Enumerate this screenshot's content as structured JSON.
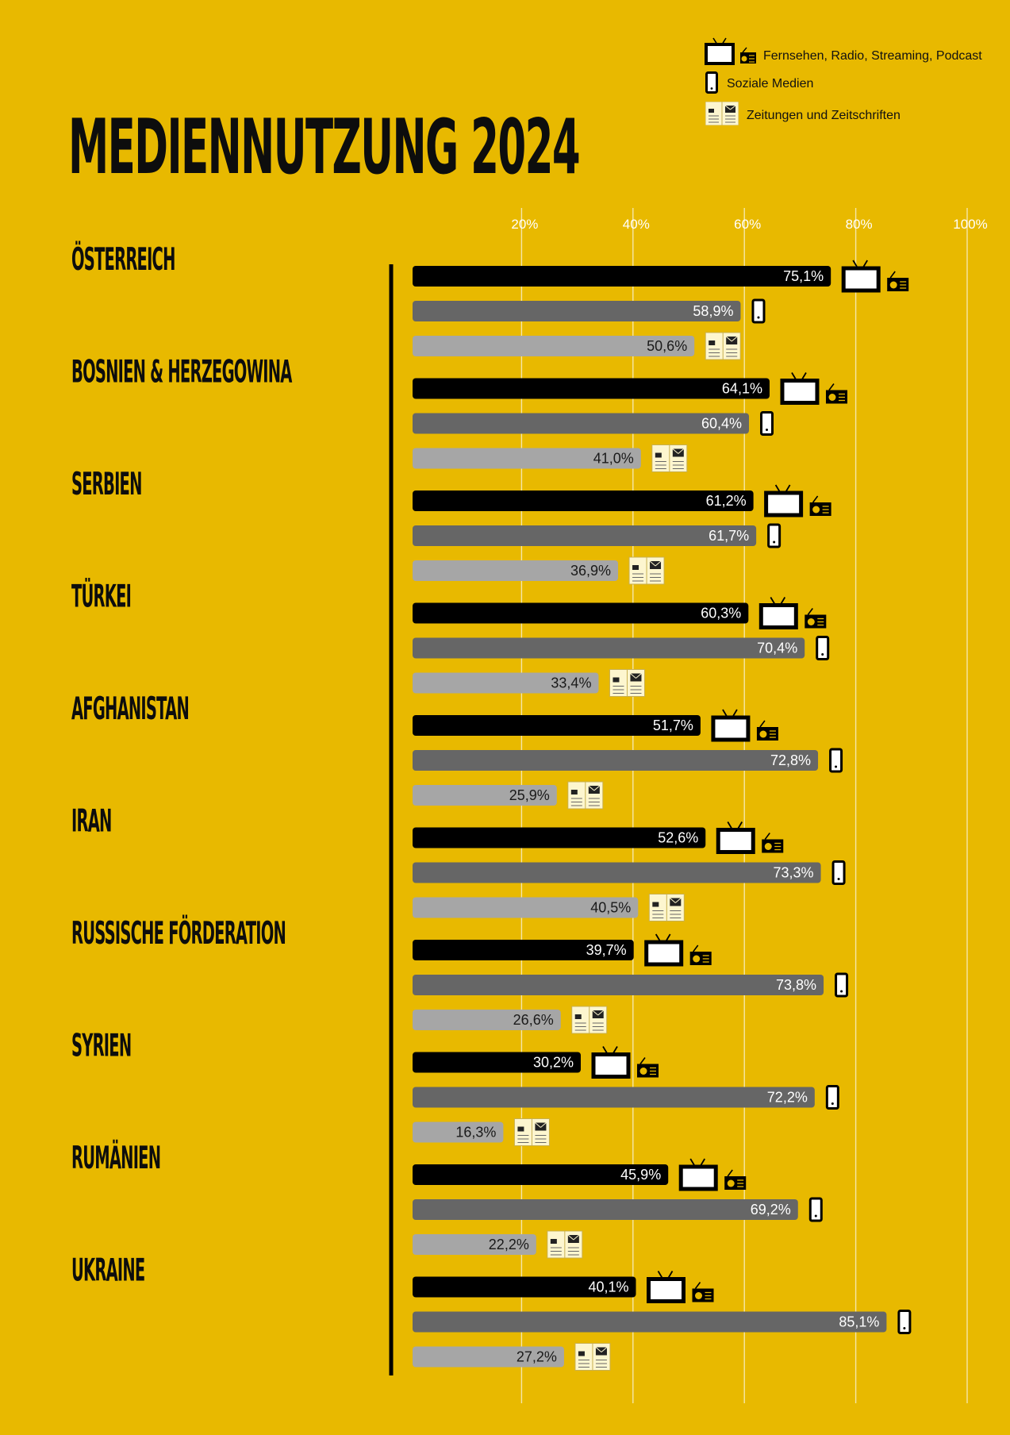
{
  "title": "MEDIENNUTZUNG 2024",
  "legend": {
    "tv": "Fernsehen, Radio, Streaming, Podcast",
    "social": "Soziale Medien",
    "print": "Zeitungen und Zeitschriften"
  },
  "colors": {
    "background": "#e8b900",
    "tv": "#000000",
    "social": "#666666",
    "print": "#a6a6a6",
    "gridline": "#f5e6a8",
    "text": "#0d0d0d"
  },
  "chart_data": {
    "type": "bar",
    "orientation": "horizontal",
    "title": "MEDIENNUTZUNG 2024",
    "xlim": [
      0,
      100
    ],
    "xticks": [
      20,
      40,
      60,
      80,
      100
    ],
    "xtick_labels": [
      "20%",
      "40%",
      "60%",
      "80%",
      "100%"
    ],
    "grid": true,
    "legend_position": "top-right",
    "categories": [
      "ÖSTERREICH",
      "BOSNIEN & HERZEGOWINA",
      "SERBIEN",
      "TÜRKEI",
      "AFGHANISTAN",
      "IRAN",
      "RUSSISCHE FÖRDERATION",
      "SYRIEN",
      "RUMÄNIEN",
      "UKRAINE"
    ],
    "series": [
      {
        "name": "Fernsehen, Radio, Streaming, Podcast",
        "icon": "tv-radio-icon",
        "values": [
          75.1,
          64.1,
          61.2,
          60.3,
          51.7,
          52.6,
          39.7,
          30.2,
          45.9,
          40.1
        ],
        "labels": [
          "75,1%",
          "64,1%",
          "61,2%",
          "60,3%",
          "51,7%",
          "52,6%",
          "39,7%",
          "30,2%",
          "45,9%",
          "40,1%"
        ]
      },
      {
        "name": "Soziale Medien",
        "icon": "smartphone-icon",
        "values": [
          58.9,
          60.4,
          61.7,
          70.4,
          72.8,
          73.3,
          73.8,
          72.2,
          69.2,
          85.1
        ],
        "labels": [
          "58,9%",
          "60,4%",
          "61,7%",
          "70,4%",
          "72,8%",
          "73,3%",
          "73,8%",
          "72,2%",
          "69,2%",
          "85,1%"
        ]
      },
      {
        "name": "Zeitungen und Zeitschriften",
        "icon": "newspaper-icon",
        "values": [
          50.6,
          41.0,
          36.9,
          33.4,
          25.9,
          40.5,
          26.6,
          16.3,
          22.2,
          27.2
        ],
        "labels": [
          "50,6%",
          "41,0%",
          "36,9%",
          "33,4%",
          "25,9%",
          "40,5%",
          "26,6%",
          "16,3%",
          "22,2%",
          "27,2%"
        ]
      }
    ]
  }
}
